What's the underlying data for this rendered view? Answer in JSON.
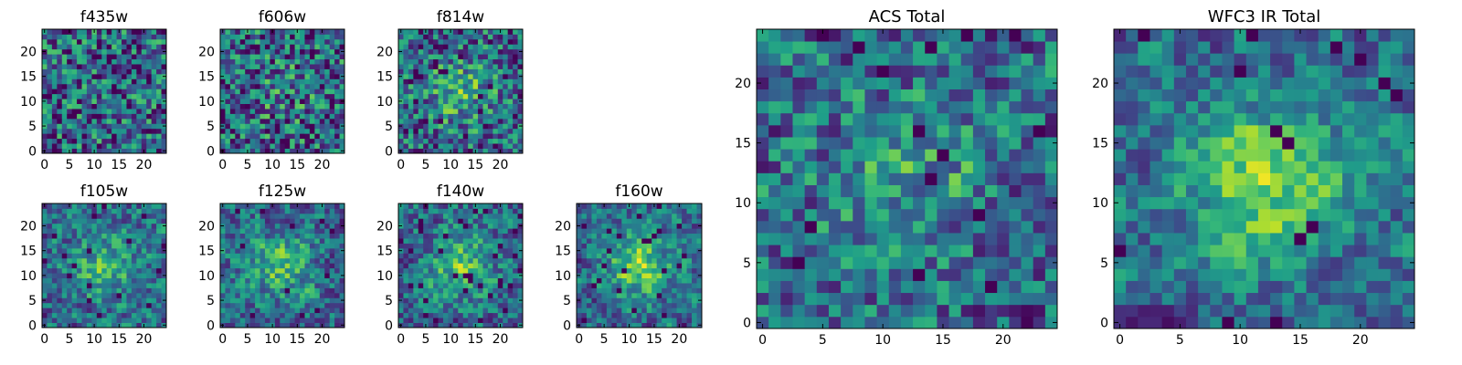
{
  "chart_data": [
    {
      "type": "heatmap",
      "title": "f435w",
      "seed": 11,
      "blob": 0.0,
      "noise": 1.0,
      "nan_rate": 0.06,
      "grid_size": 25,
      "xlim": [
        0,
        24
      ],
      "ylim": [
        0,
        24
      ],
      "xticks": [
        "0",
        "5",
        "10",
        "15",
        "20"
      ],
      "yticks": [
        "0",
        "5",
        "10",
        "15",
        "20"
      ],
      "colormap": "viridis"
    },
    {
      "type": "heatmap",
      "title": "f606w",
      "seed": 23,
      "blob": 0.25,
      "noise": 1.0,
      "nan_rate": 0.06,
      "grid_size": 25,
      "xlim": [
        0,
        24
      ],
      "ylim": [
        0,
        24
      ],
      "xticks": [
        "0",
        "5",
        "10",
        "15",
        "20"
      ],
      "yticks": [
        "0",
        "5",
        "10",
        "15",
        "20"
      ],
      "colormap": "viridis"
    },
    {
      "type": "heatmap",
      "title": "f814w",
      "seed": 37,
      "blob": 0.6,
      "noise": 0.9,
      "nan_rate": 0.06,
      "grid_size": 25,
      "xlim": [
        0,
        24
      ],
      "ylim": [
        0,
        24
      ],
      "xticks": [
        "0",
        "5",
        "10",
        "15",
        "20"
      ],
      "yticks": [
        "0",
        "5",
        "10",
        "15",
        "20"
      ],
      "colormap": "viridis"
    },
    {
      "type": "heatmap",
      "title": "f105w",
      "seed": 41,
      "blob": 0.7,
      "noise": 0.6,
      "nan_rate": 0.02,
      "grid_size": 25,
      "xlim": [
        0,
        24
      ],
      "ylim": [
        0,
        24
      ],
      "xticks": [
        "0",
        "5",
        "10",
        "15",
        "20"
      ],
      "yticks": [
        "0",
        "5",
        "10",
        "15",
        "20"
      ],
      "colormap": "viridis"
    },
    {
      "type": "heatmap",
      "title": "f125w",
      "seed": 53,
      "blob": 0.7,
      "noise": 0.6,
      "nan_rate": 0.02,
      "grid_size": 25,
      "xlim": [
        0,
        24
      ],
      "ylim": [
        0,
        24
      ],
      "xticks": [
        "0",
        "5",
        "10",
        "15",
        "20"
      ],
      "yticks": [
        "0",
        "5",
        "10",
        "15",
        "20"
      ],
      "colormap": "viridis"
    },
    {
      "type": "heatmap",
      "title": "f140w",
      "seed": 67,
      "blob": 0.8,
      "noise": 0.6,
      "nan_rate": 0.04,
      "grid_size": 25,
      "xlim": [
        0,
        24
      ],
      "ylim": [
        0,
        24
      ],
      "xticks": [
        "0",
        "5",
        "10",
        "15",
        "20"
      ],
      "yticks": [
        "0",
        "5",
        "10",
        "15",
        "20"
      ],
      "colormap": "viridis"
    },
    {
      "type": "heatmap",
      "title": "f160w",
      "seed": 79,
      "blob": 1.0,
      "noise": 0.55,
      "nan_rate": 0.05,
      "grid_size": 25,
      "xlim": [
        0,
        24
      ],
      "ylim": [
        0,
        24
      ],
      "xticks": [
        "0",
        "5",
        "10",
        "15",
        "20"
      ],
      "yticks": [
        "0",
        "5",
        "10",
        "15",
        "20"
      ],
      "colormap": "viridis"
    },
    {
      "type": "heatmap",
      "title": "ACS Total",
      "seed": 83,
      "blob": 0.5,
      "noise": 0.75,
      "nan_rate": 0.03,
      "grid_size": 25,
      "xlim": [
        0,
        24
      ],
      "ylim": [
        0,
        24
      ],
      "xticks": [
        "0",
        "5",
        "10",
        "15",
        "20"
      ],
      "yticks": [
        "0",
        "5",
        "10",
        "15",
        "20"
      ],
      "colormap": "viridis"
    },
    {
      "type": "heatmap",
      "title": "WFC3 IR Total",
      "seed": 97,
      "blob": 1.0,
      "noise": 0.45,
      "nan_rate": 0.03,
      "grid_size": 25,
      "xlim": [
        0,
        24
      ],
      "ylim": [
        0,
        24
      ],
      "xticks": [
        "0",
        "5",
        "10",
        "15",
        "20"
      ],
      "yticks": [
        "0",
        "5",
        "10",
        "15",
        "20"
      ],
      "colormap": "viridis"
    }
  ]
}
